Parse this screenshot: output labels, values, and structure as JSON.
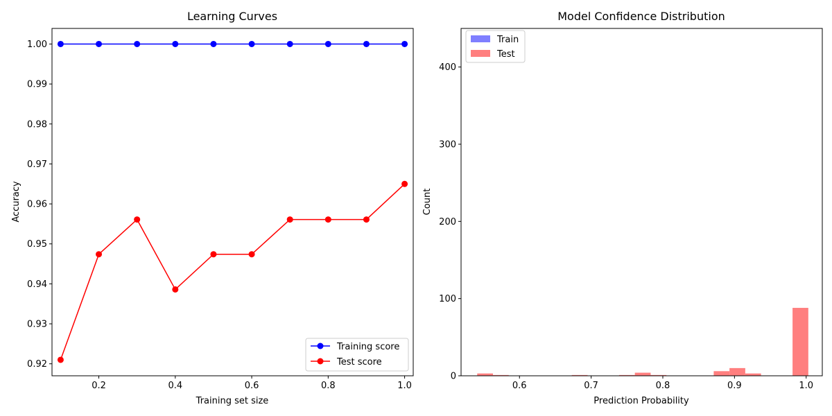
{
  "chart_data": [
    {
      "type": "line",
      "title": "Learning Curves",
      "xlabel": "Training set size",
      "ylabel": "Accuracy",
      "xlim": [
        0.0775,
        1.0225
      ],
      "ylim": [
        0.917,
        1.0039
      ],
      "xticks": [
        0.2,
        0.4,
        0.6,
        0.8,
        1.0
      ],
      "xtick_labels": [
        "0.2",
        "0.4",
        "0.6",
        "0.8",
        "1.0"
      ],
      "yticks": [
        0.92,
        0.93,
        0.94,
        0.95,
        0.96,
        0.97,
        0.98,
        0.99,
        1.0
      ],
      "ytick_labels": [
        "0.92",
        "0.93",
        "0.94",
        "0.95",
        "0.96",
        "0.97",
        "0.98",
        "0.99",
        "1.00"
      ],
      "grid": false,
      "legend_position": "lower-right",
      "x": [
        0.1,
        0.2,
        0.3,
        0.4,
        0.5,
        0.6,
        0.7,
        0.8,
        0.9,
        1.0
      ],
      "series": [
        {
          "name": "Training score",
          "color": "#0000ff",
          "values": [
            1.0,
            1.0,
            1.0,
            1.0,
            1.0,
            1.0,
            1.0,
            1.0,
            1.0,
            1.0
          ]
        },
        {
          "name": "Test score",
          "color": "#ff0000",
          "values": [
            0.921,
            0.9474,
            0.9561,
            0.9386,
            0.9474,
            0.9474,
            0.9561,
            0.9561,
            0.9561,
            0.965
          ]
        }
      ]
    },
    {
      "type": "bar",
      "title": "Model Confidence Distribution",
      "xlabel": "Prediction Probability",
      "ylabel": "Count",
      "xlim": [
        0.5185,
        1.0225
      ],
      "ylim": [
        0,
        450
      ],
      "xticks": [
        0.6,
        0.7,
        0.8,
        0.9,
        1.0
      ],
      "xtick_labels": [
        "0.6",
        "0.7",
        "0.8",
        "0.9",
        "1.0"
      ],
      "yticks": [
        0,
        100,
        200,
        300,
        400
      ],
      "ytick_labels": [
        "0",
        "100",
        "200",
        "300",
        "400"
      ],
      "grid": false,
      "legend_position": "top-left",
      "series": [
        {
          "name": "Train",
          "color": "#7f7fff",
          "bins": []
        },
        {
          "name": "Test",
          "color": "#ff7f7f",
          "bins": [
            {
              "x0": 0.541,
              "x1": 0.563,
              "count": 3
            },
            {
              "x0": 0.563,
              "x1": 0.585,
              "count": 1
            },
            {
              "x0": 0.673,
              "x1": 0.695,
              "count": 1
            },
            {
              "x0": 0.739,
              "x1": 0.761,
              "count": 1
            },
            {
              "x0": 0.761,
              "x1": 0.783,
              "count": 4
            },
            {
              "x0": 0.783,
              "x1": 0.805,
              "count": 1
            },
            {
              "x0": 0.871,
              "x1": 0.893,
              "count": 6
            },
            {
              "x0": 0.893,
              "x1": 0.915,
              "count": 10
            },
            {
              "x0": 0.915,
              "x1": 0.937,
              "count": 3
            },
            {
              "x0": 0.981,
              "x1": 1.003,
              "count": 88
            }
          ]
        }
      ]
    }
  ]
}
